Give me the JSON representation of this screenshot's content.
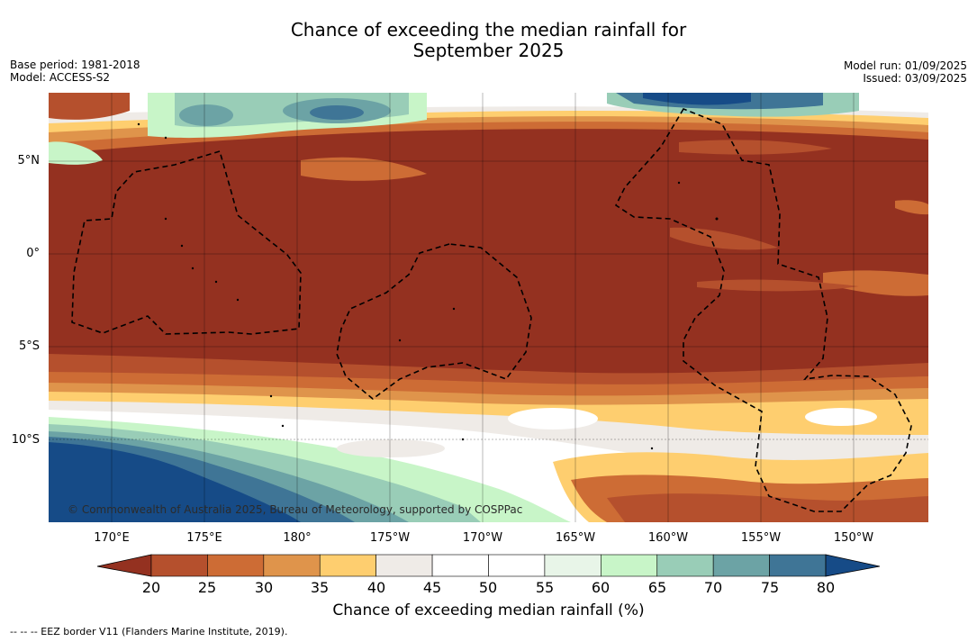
{
  "title_line1": "Chance of exceeding the median rainfall for",
  "title_line2": "September 2025",
  "meta": {
    "base_period": "Base period: 1981-2018",
    "model": "Model: ACCESS-S2",
    "model_run": "Model run: 01/09/2025",
    "issued": "Issued: 03/09/2025"
  },
  "lat_labels": [
    "5°N",
    "0°",
    "5°S",
    "10°S"
  ],
  "lon_labels": [
    "170°E",
    "175°E",
    "180°",
    "175°W",
    "170°W",
    "165°W",
    "160°W",
    "155°W",
    "150°W"
  ],
  "credit": "© Commonwealth of Australia 2025, Bureau of Meteorology, supported by COSPPac",
  "colorbar": {
    "label": "Chance of exceeding median rainfall (%)",
    "ticks": [
      "20",
      "25",
      "30",
      "35",
      "40",
      "45",
      "50",
      "55",
      "60",
      "65",
      "70",
      "75",
      "80"
    ],
    "colors": [
      "#943120",
      "#b5502d",
      "#cd6c35",
      "#df944b",
      "#fece6f",
      "#efebe7",
      "#ffffff",
      "#ffffff",
      "#e8f5e8",
      "#c8f5c8",
      "#99cdb7",
      "#6ca3a5",
      "#3f7596",
      "#164b87"
    ]
  },
  "legend_note": "--  --  -- EEZ border V11 (Flanders Marine Institute, 2019)."
}
